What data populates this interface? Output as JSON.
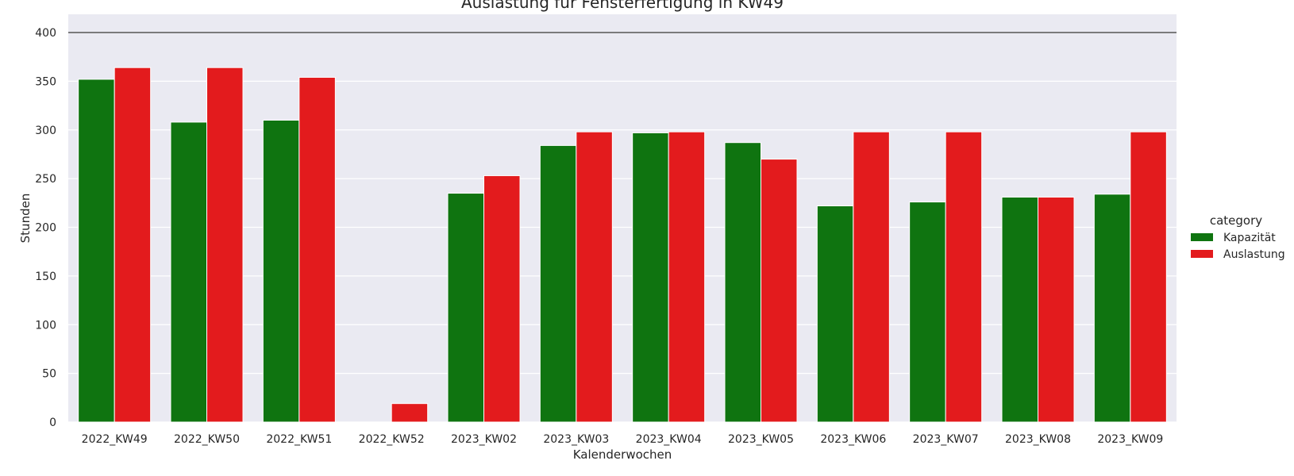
{
  "chart_data": {
    "type": "bar",
    "title": "Auslastung für Fensterfertigung in KW49",
    "xlabel": "Kalenderwochen",
    "ylabel": "Stunden",
    "ylim": [
      0,
      420
    ],
    "yticks": [
      0,
      50,
      100,
      150,
      200,
      250,
      300,
      350,
      400
    ],
    "reference_line": 400,
    "grid": true,
    "legend_title": "category",
    "legend_position": "right",
    "categories": [
      "2022_KW49",
      "2022_KW50",
      "2022_KW51",
      "2022_KW52",
      "2023_KW02",
      "2023_KW03",
      "2023_KW04",
      "2023_KW05",
      "2023_KW06",
      "2023_KW07",
      "2023_KW08",
      "2023_KW09"
    ],
    "series": [
      {
        "name": "Kapazität",
        "color": "#0f7410",
        "values": [
          352,
          308,
          310,
          0,
          235,
          284,
          297,
          287,
          222,
          226,
          231,
          234
        ]
      },
      {
        "name": "Auslastung",
        "color": "#e31b1d",
        "values": [
          364,
          364,
          354,
          19,
          253,
          298,
          298,
          270,
          298,
          298,
          231,
          298
        ]
      }
    ]
  }
}
